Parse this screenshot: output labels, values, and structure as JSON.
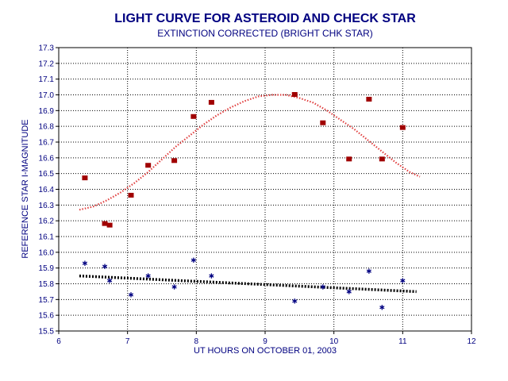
{
  "chart_data": {
    "type": "scatter",
    "title": "LIGHT CURVE FOR ASTEROID AND CHECK STAR",
    "subtitle": "EXTINCTION CORRECTED (BRIGHT CHK STAR)",
    "xlabel": "UT HOURS ON OCTOBER 01, 2003",
    "ylabel": "REFERENCE STAR I-MAGNITUDE",
    "xlim": [
      6,
      12
    ],
    "ylim": [
      15.5,
      17.3
    ],
    "x_ticks": [
      "6",
      "7",
      "8",
      "9",
      "10",
      "11",
      "12"
    ],
    "y_ticks": [
      "15.5",
      "15.6",
      "15.7",
      "15.8",
      "15.9",
      "16.0",
      "16.1",
      "16.2",
      "16.3",
      "16.4",
      "16.5",
      "16.6",
      "16.7",
      "16.8",
      "16.9",
      "17.0",
      "17.1",
      "17.2",
      "17.3"
    ],
    "grid": true,
    "series": [
      {
        "marker": "square",
        "color": "#a00000",
        "points": [
          [
            6.38,
            16.47
          ],
          [
            6.67,
            16.18
          ],
          [
            6.74,
            16.17
          ],
          [
            7.05,
            16.36
          ],
          [
            7.3,
            16.55
          ],
          [
            7.68,
            16.58
          ],
          [
            7.96,
            16.86
          ],
          [
            8.22,
            16.95
          ],
          [
            9.43,
            17.0
          ],
          [
            9.84,
            16.82
          ],
          [
            10.22,
            16.59
          ],
          [
            10.51,
            16.97
          ],
          [
            10.7,
            16.59
          ],
          [
            11.0,
            16.79
          ]
        ],
        "fit": {
          "style": "dotted",
          "color": "#e04040",
          "points": [
            [
              6.3,
              16.27
            ],
            [
              6.5,
              16.29
            ],
            [
              6.7,
              16.33
            ],
            [
              6.9,
              16.38
            ],
            [
              7.1,
              16.44
            ],
            [
              7.3,
              16.51
            ],
            [
              7.5,
              16.59
            ],
            [
              7.7,
              16.67
            ],
            [
              7.9,
              16.74
            ],
            [
              8.1,
              16.81
            ],
            [
              8.3,
              16.87
            ],
            [
              8.5,
              16.92
            ],
            [
              8.7,
              16.96
            ],
            [
              8.9,
              16.99
            ],
            [
              9.1,
              17.0
            ],
            [
              9.3,
              17.0
            ],
            [
              9.5,
              16.98
            ],
            [
              9.7,
              16.95
            ],
            [
              9.9,
              16.9
            ],
            [
              10.1,
              16.84
            ],
            [
              10.3,
              16.78
            ],
            [
              10.5,
              16.71
            ],
            [
              10.7,
              16.64
            ],
            [
              10.9,
              16.57
            ],
            [
              11.1,
              16.51
            ],
            [
              11.25,
              16.48
            ]
          ]
        }
      },
      {
        "marker": "asterisk",
        "color": "#000080",
        "points": [
          [
            6.38,
            15.93
          ],
          [
            6.67,
            15.91
          ],
          [
            6.74,
            15.82
          ],
          [
            7.05,
            15.73
          ],
          [
            7.3,
            15.85
          ],
          [
            7.68,
            15.78
          ],
          [
            7.96,
            15.95
          ],
          [
            8.22,
            15.85
          ],
          [
            9.43,
            15.69
          ],
          [
            9.84,
            15.78
          ],
          [
            10.22,
            15.75
          ],
          [
            10.51,
            15.88
          ],
          [
            10.7,
            15.65
          ],
          [
            11.0,
            15.82
          ]
        ],
        "fit": {
          "style": "dotted",
          "color": "#000000",
          "points": [
            [
              6.3,
              15.85
            ],
            [
              11.2,
              15.75
            ]
          ]
        }
      }
    ]
  }
}
